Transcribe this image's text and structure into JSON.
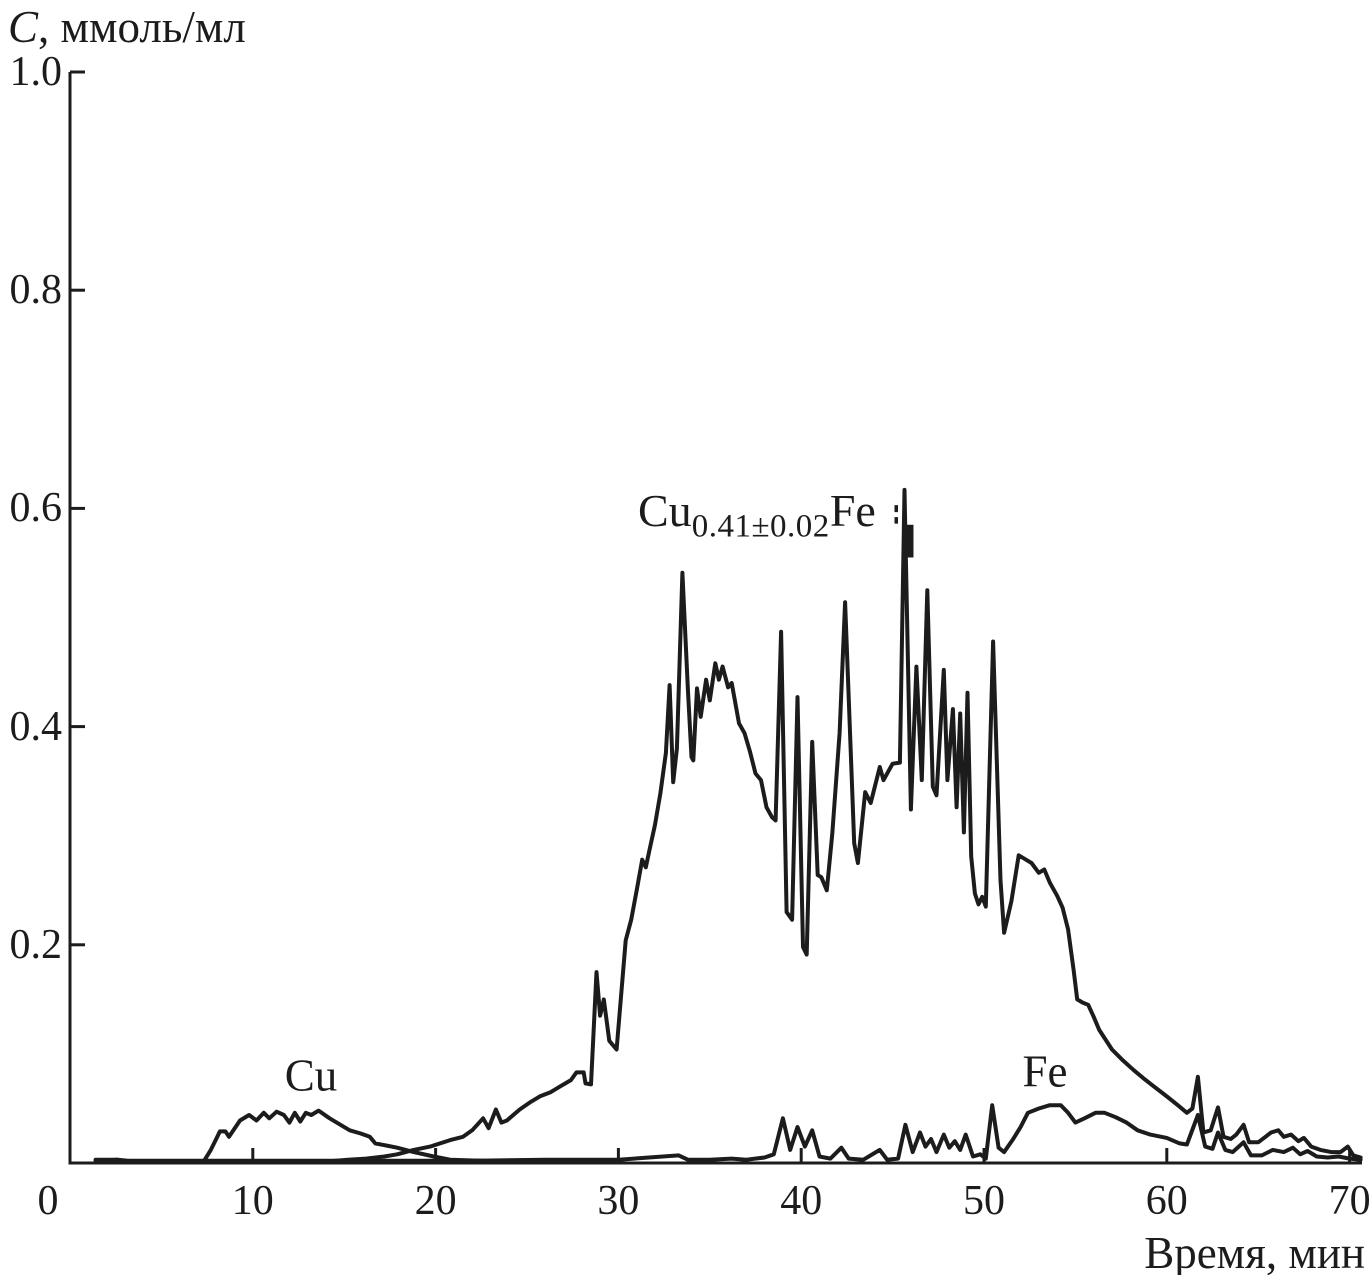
{
  "figure": {
    "y_axis_title": {
      "symbol": "C",
      "rest": ", ммоль/мл"
    },
    "x_axis_title": "Время, мин",
    "line_color": "#1c1c1c",
    "background_color": "#ffffff",
    "x_axis": {
      "ticks": [
        {
          "t": 0,
          "label": "0"
        },
        {
          "t": 10,
          "label": "10"
        },
        {
          "t": 20,
          "label": "20"
        },
        {
          "t": 30,
          "label": "30"
        },
        {
          "t": 40,
          "label": "40"
        },
        {
          "t": 50,
          "label": "50"
        },
        {
          "t": 60,
          "label": "60"
        },
        {
          "t": 70,
          "label": "70"
        }
      ]
    },
    "y_axis": {
      "ticks": [
        {
          "v": 0.2,
          "label": "0.2"
        },
        {
          "v": 0.4,
          "label": "0.4"
        },
        {
          "v": 0.6,
          "label": "0.6"
        },
        {
          "v": 0.8,
          "label": "0.8"
        },
        {
          "v": 1.0,
          "label": "1.0"
        }
      ]
    },
    "labels": {
      "cu": "Cu",
      "fe": "Fe",
      "cufe": {
        "prefix": "Cu",
        "subscript": "0.41±0.02",
        "suffix": "Fe"
      }
    }
  },
  "chart_data": {
    "type": "line",
    "title": "",
    "xlabel": "Время, мин",
    "ylabel": "C, ммоль/мл",
    "xlim": [
      0,
      71
    ],
    "ylim": [
      0,
      1.0
    ],
    "grid": false,
    "legend_position": "none",
    "x_ticks": [
      0,
      10,
      20,
      30,
      40,
      50,
      60,
      70
    ],
    "y_ticks": [
      0.2,
      0.4,
      0.6,
      0.8,
      1.0
    ],
    "annotations": [
      {
        "text": "Cu",
        "x": 13.2,
        "y": 0.078
      },
      {
        "text": "Fe",
        "x": 53.3,
        "y": 0.082
      },
      {
        "text": "Cu0.41±0.02Fe",
        "x": 31.1,
        "y": 0.6
      }
    ],
    "print_artifacts": [
      {
        "type": "dashed-mark",
        "t": 45.2,
        "c_top": 0.603,
        "c_bottom": 0.586
      },
      {
        "type": "bar-mark",
        "t": 45.95,
        "c_top": 0.585,
        "c_bottom": 0.555
      }
    ],
    "series": [
      {
        "name": "Cu",
        "points": [
          [
            1.4,
            0.002
          ],
          [
            2.6,
            0.003
          ],
          [
            3.2,
            0.001
          ],
          [
            5.0,
            0.001
          ],
          [
            7.3,
            0.001
          ],
          [
            7.7,
            0.012
          ],
          [
            8.0,
            0.022
          ],
          [
            8.2,
            0.029
          ],
          [
            8.5,
            0.029
          ],
          [
            8.7,
            0.024
          ],
          [
            9.3,
            0.039
          ],
          [
            9.8,
            0.044
          ],
          [
            10.2,
            0.039
          ],
          [
            10.6,
            0.046
          ],
          [
            10.9,
            0.041
          ],
          [
            11.3,
            0.047
          ],
          [
            11.7,
            0.044
          ],
          [
            12.0,
            0.037
          ],
          [
            12.3,
            0.046
          ],
          [
            12.6,
            0.038
          ],
          [
            12.9,
            0.046
          ],
          [
            13.2,
            0.044
          ],
          [
            13.6,
            0.048
          ],
          [
            14.2,
            0.041
          ],
          [
            14.8,
            0.035
          ],
          [
            15.3,
            0.03
          ],
          [
            15.9,
            0.027
          ],
          [
            16.4,
            0.024
          ],
          [
            16.7,
            0.018
          ],
          [
            17.3,
            0.016
          ],
          [
            17.9,
            0.014
          ],
          [
            18.8,
            0.01
          ],
          [
            19.9,
            0.006
          ],
          [
            20.8,
            0.003
          ],
          [
            22.5,
            0.002
          ],
          [
            24.0,
            0.001
          ]
        ]
      },
      {
        "name": "Cu0.41±0.02Fe",
        "points": [
          [
            13.8,
            0.001
          ],
          [
            15.2,
            0.003
          ],
          [
            16.2,
            0.004
          ],
          [
            17.2,
            0.006
          ],
          [
            17.9,
            0.008
          ],
          [
            18.8,
            0.012
          ],
          [
            19.7,
            0.015
          ],
          [
            20.8,
            0.021
          ],
          [
            21.5,
            0.024
          ],
          [
            22.0,
            0.03
          ],
          [
            22.6,
            0.041
          ],
          [
            22.9,
            0.032
          ],
          [
            23.3,
            0.049
          ],
          [
            23.6,
            0.037
          ],
          [
            23.9,
            0.039
          ],
          [
            24.6,
            0.049
          ],
          [
            25.2,
            0.056
          ],
          [
            25.7,
            0.061
          ],
          [
            26.3,
            0.065
          ],
          [
            26.8,
            0.07
          ],
          [
            27.4,
            0.076
          ],
          [
            27.7,
            0.083
          ],
          [
            28.1,
            0.083
          ],
          [
            28.2,
            0.073
          ],
          [
            28.5,
            0.072
          ],
          [
            28.8,
            0.175
          ],
          [
            29.0,
            0.135
          ],
          [
            29.2,
            0.15
          ],
          [
            29.5,
            0.112
          ],
          [
            29.9,
            0.104
          ],
          [
            30.4,
            0.204
          ],
          [
            30.7,
            0.223
          ],
          [
            31.0,
            0.25
          ],
          [
            31.3,
            0.278
          ],
          [
            31.5,
            0.271
          ],
          [
            31.7,
            0.287
          ],
          [
            32.0,
            0.31
          ],
          [
            32.3,
            0.339
          ],
          [
            32.6,
            0.376
          ],
          [
            32.8,
            0.438
          ],
          [
            33.0,
            0.349
          ],
          [
            33.2,
            0.38
          ],
          [
            33.5,
            0.541
          ],
          [
            33.8,
            0.434
          ],
          [
            34.0,
            0.372
          ],
          [
            34.1,
            0.369
          ],
          [
            34.3,
            0.435
          ],
          [
            34.5,
            0.409
          ],
          [
            34.8,
            0.443
          ],
          [
            35.0,
            0.424
          ],
          [
            35.3,
            0.458
          ],
          [
            35.5,
            0.443
          ],
          [
            35.7,
            0.455
          ],
          [
            36.0,
            0.436
          ],
          [
            36.2,
            0.44
          ],
          [
            36.6,
            0.403
          ],
          [
            36.9,
            0.394
          ],
          [
            37.2,
            0.377
          ],
          [
            37.5,
            0.357
          ],
          [
            37.8,
            0.351
          ],
          [
            38.1,
            0.326
          ],
          [
            38.4,
            0.317
          ],
          [
            38.6,
            0.314
          ],
          [
            38.9,
            0.487
          ],
          [
            39.2,
            0.23
          ],
          [
            39.5,
            0.223
          ],
          [
            39.8,
            0.427
          ],
          [
            40.1,
            0.198
          ],
          [
            40.3,
            0.191
          ],
          [
            40.6,
            0.386
          ],
          [
            40.9,
            0.264
          ],
          [
            41.1,
            0.262
          ],
          [
            41.4,
            0.25
          ],
          [
            41.7,
            0.302
          ],
          [
            42.1,
            0.394
          ],
          [
            42.4,
            0.514
          ],
          [
            42.9,
            0.293
          ],
          [
            43.1,
            0.275
          ],
          [
            43.5,
            0.34
          ],
          [
            43.8,
            0.33
          ],
          [
            44.3,
            0.363
          ],
          [
            44.5,
            0.351
          ],
          [
            45.0,
            0.366
          ],
          [
            45.4,
            0.367
          ],
          [
            45.65,
            0.617
          ],
          [
            46.0,
            0.324
          ],
          [
            46.3,
            0.455
          ],
          [
            46.6,
            0.351
          ],
          [
            46.9,
            0.525
          ],
          [
            47.2,
            0.345
          ],
          [
            47.4,
            0.337
          ],
          [
            47.8,
            0.452
          ],
          [
            48.0,
            0.351
          ],
          [
            48.3,
            0.416
          ],
          [
            48.5,
            0.326
          ],
          [
            48.7,
            0.412
          ],
          [
            48.9,
            0.303
          ],
          [
            49.1,
            0.431
          ],
          [
            49.3,
            0.281
          ],
          [
            49.5,
            0.247
          ],
          [
            49.7,
            0.237
          ],
          [
            49.9,
            0.244
          ],
          [
            50.1,
            0.235
          ],
          [
            50.5,
            0.478
          ],
          [
            50.9,
            0.259
          ],
          [
            51.1,
            0.211
          ],
          [
            51.5,
            0.24
          ],
          [
            51.9,
            0.282
          ],
          [
            52.3,
            0.278
          ],
          [
            52.6,
            0.275
          ],
          [
            53.0,
            0.266
          ],
          [
            53.3,
            0.269
          ],
          [
            53.6,
            0.257
          ],
          [
            54.0,
            0.245
          ],
          [
            54.3,
            0.234
          ],
          [
            54.6,
            0.214
          ],
          [
            54.9,
            0.177
          ],
          [
            55.1,
            0.15
          ],
          [
            55.4,
            0.147
          ],
          [
            55.7,
            0.145
          ],
          [
            56.0,
            0.134
          ],
          [
            56.3,
            0.122
          ],
          [
            57.0,
            0.104
          ],
          [
            57.6,
            0.094
          ],
          [
            58.2,
            0.085
          ],
          [
            58.7,
            0.078
          ],
          [
            59.3,
            0.07
          ],
          [
            60.0,
            0.061
          ],
          [
            60.6,
            0.053
          ],
          [
            61.1,
            0.046
          ],
          [
            61.4,
            0.05
          ],
          [
            61.7,
            0.079
          ],
          [
            62.0,
            0.028
          ],
          [
            62.4,
            0.03
          ],
          [
            62.8,
            0.051
          ],
          [
            63.1,
            0.024
          ],
          [
            63.5,
            0.022
          ],
          [
            63.8,
            0.026
          ],
          [
            64.2,
            0.035
          ],
          [
            64.5,
            0.019
          ],
          [
            65.0,
            0.019
          ],
          [
            65.4,
            0.024
          ],
          [
            65.7,
            0.028
          ],
          [
            66.1,
            0.03
          ],
          [
            66.4,
            0.024
          ],
          [
            66.8,
            0.026
          ],
          [
            67.2,
            0.02
          ],
          [
            67.5,
            0.023
          ],
          [
            67.9,
            0.015
          ],
          [
            68.4,
            0.012
          ],
          [
            69.0,
            0.01
          ],
          [
            69.5,
            0.01
          ],
          [
            69.9,
            0.015
          ],
          [
            70.2,
            0.007
          ],
          [
            70.6,
            0.005
          ]
        ]
      },
      {
        "name": "Fe",
        "points": [
          [
            1.4,
            0.003
          ],
          [
            2.6,
            0.003
          ],
          [
            3.2,
            0.002
          ],
          [
            6.0,
            0.002
          ],
          [
            10.0,
            0.002
          ],
          [
            14.0,
            0.002
          ],
          [
            18.0,
            0.002
          ],
          [
            22.0,
            0.002
          ],
          [
            26.0,
            0.003
          ],
          [
            30.0,
            0.003
          ],
          [
            33.3,
            0.007
          ],
          [
            33.8,
            0.003
          ],
          [
            35.0,
            0.003
          ],
          [
            36.2,
            0.004
          ],
          [
            37.0,
            0.003
          ],
          [
            38.0,
            0.005
          ],
          [
            38.5,
            0.008
          ],
          [
            39.0,
            0.041
          ],
          [
            39.4,
            0.012
          ],
          [
            39.8,
            0.033
          ],
          [
            40.2,
            0.015
          ],
          [
            40.6,
            0.03
          ],
          [
            41.0,
            0.006
          ],
          [
            41.6,
            0.004
          ],
          [
            42.2,
            0.014
          ],
          [
            42.6,
            0.004
          ],
          [
            43.4,
            0.003
          ],
          [
            44.3,
            0.012
          ],
          [
            44.7,
            0.003
          ],
          [
            45.3,
            0.004
          ],
          [
            45.7,
            0.035
          ],
          [
            46.1,
            0.01
          ],
          [
            46.5,
            0.028
          ],
          [
            46.8,
            0.015
          ],
          [
            47.1,
            0.022
          ],
          [
            47.4,
            0.01
          ],
          [
            47.8,
            0.026
          ],
          [
            48.1,
            0.014
          ],
          [
            48.4,
            0.02
          ],
          [
            48.7,
            0.012
          ],
          [
            49.0,
            0.026
          ],
          [
            49.4,
            0.006
          ],
          [
            49.8,
            0.008
          ],
          [
            50.1,
            0.004
          ],
          [
            50.45,
            0.053
          ],
          [
            50.8,
            0.014
          ],
          [
            51.1,
            0.01
          ],
          [
            51.6,
            0.022
          ],
          [
            52.0,
            0.033
          ],
          [
            52.4,
            0.046
          ],
          [
            53.0,
            0.05
          ],
          [
            53.6,
            0.053
          ],
          [
            54.2,
            0.053
          ],
          [
            54.6,
            0.046
          ],
          [
            55.0,
            0.037
          ],
          [
            55.5,
            0.041
          ],
          [
            56.1,
            0.046
          ],
          [
            56.6,
            0.046
          ],
          [
            57.2,
            0.042
          ],
          [
            57.8,
            0.037
          ],
          [
            58.4,
            0.03
          ],
          [
            59.1,
            0.026
          ],
          [
            60.0,
            0.023
          ],
          [
            60.7,
            0.018
          ],
          [
            61.1,
            0.017
          ],
          [
            61.7,
            0.044
          ],
          [
            62.1,
            0.015
          ],
          [
            62.5,
            0.013
          ],
          [
            62.8,
            0.028
          ],
          [
            63.2,
            0.012
          ],
          [
            63.6,
            0.01
          ],
          [
            64.2,
            0.019
          ],
          [
            64.6,
            0.007
          ],
          [
            65.2,
            0.007
          ],
          [
            65.8,
            0.012
          ],
          [
            66.4,
            0.01
          ],
          [
            66.9,
            0.014
          ],
          [
            67.3,
            0.008
          ],
          [
            67.7,
            0.011
          ],
          [
            68.2,
            0.006
          ],
          [
            68.8,
            0.005
          ],
          [
            69.4,
            0.006
          ],
          [
            70.0,
            0.004
          ],
          [
            70.6,
            0.003
          ]
        ]
      }
    ]
  }
}
